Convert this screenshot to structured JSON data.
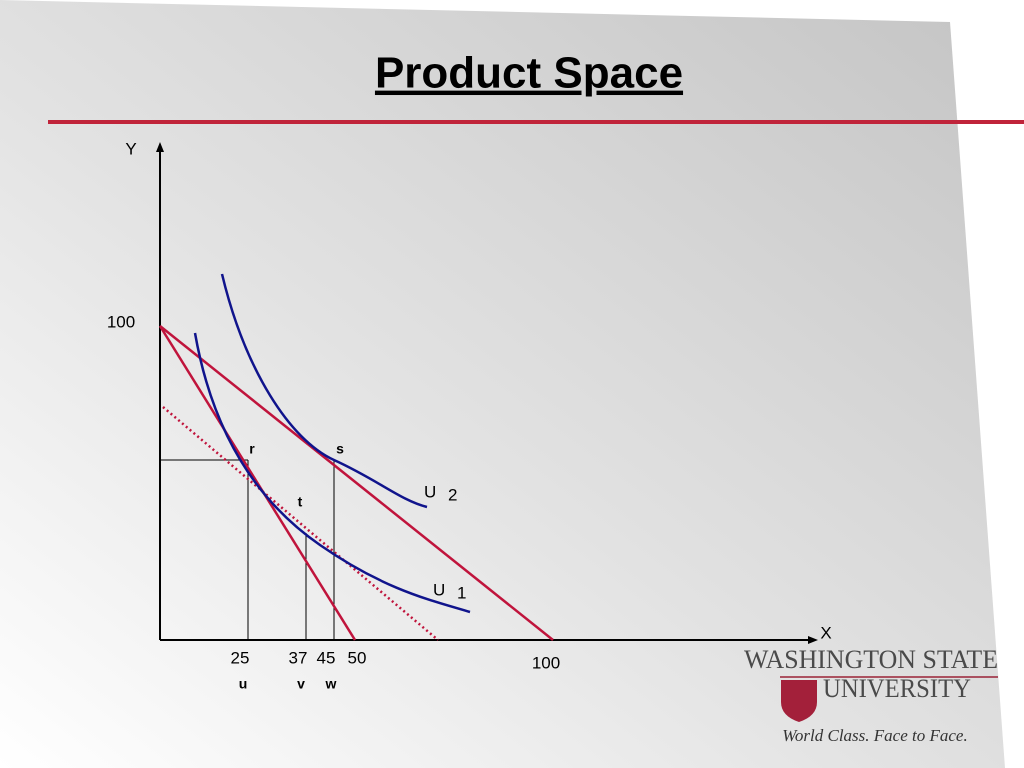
{
  "title": "Product Space",
  "axes": {
    "y_label": "Y",
    "x_label": "X",
    "y_tick": "100",
    "x_ticks": [
      "25",
      "37",
      "45",
      "50",
      "100"
    ]
  },
  "points": [
    "r",
    "s",
    "t"
  ],
  "quantity_labels": [
    "u",
    "v",
    "w"
  ],
  "curves": [
    {
      "name": "U",
      "subscript": "2"
    },
    {
      "name": "U",
      "subscript": "1"
    }
  ],
  "logo": {
    "line1": "WASHINGTON STATE",
    "line2": "UNIVERSITY",
    "tagline": "World Class. Face to Face."
  }
}
